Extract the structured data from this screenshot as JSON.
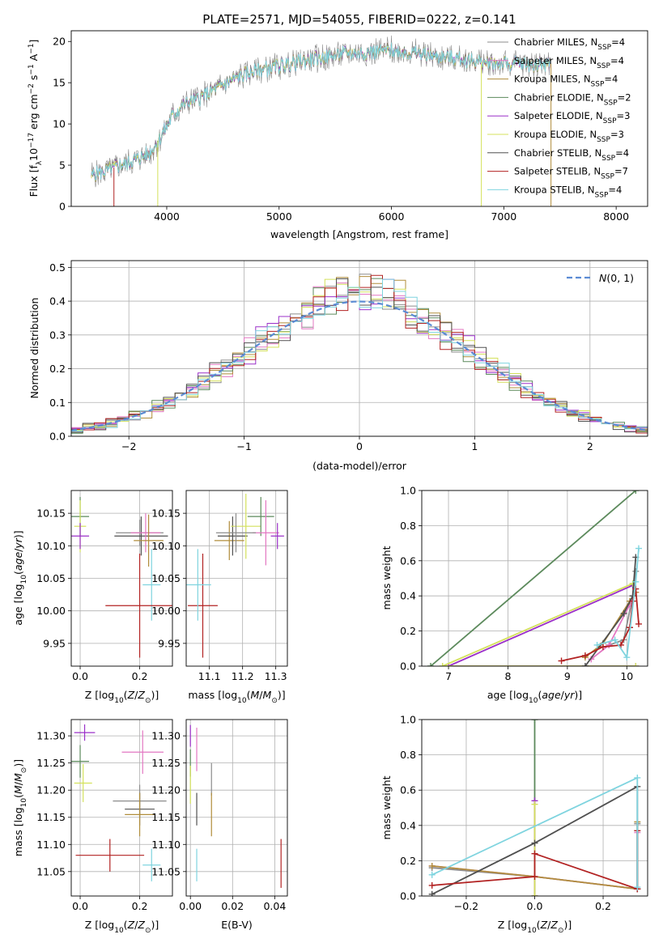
{
  "figure_title": "PLATE=2571, MJD=54055, FIBERID=0222, z=0.141",
  "models": [
    {
      "name": "Chabrier MILES",
      "nssp": "4",
      "color": "#8c8c8c"
    },
    {
      "name": "Salpeter MILES",
      "nssp": "4",
      "color": "#e377c2"
    },
    {
      "name": "Kroupa MILES",
      "nssp": "4",
      "color": "#b08d3b"
    },
    {
      "name": "Chabrier ELODIE",
      "nssp": "2",
      "color": "#5c8a5c"
    },
    {
      "name": "Salpeter ELODIE",
      "nssp": "3",
      "color": "#9b30c9"
    },
    {
      "name": "Kroupa ELODIE",
      "nssp": "3",
      "color": "#d4e15c"
    },
    {
      "name": "Chabrier STELIB",
      "nssp": "4",
      "color": "#505050"
    },
    {
      "name": "Salpeter STELIB",
      "nssp": "7",
      "color": "#b22222"
    },
    {
      "name": "Kroupa STELIB",
      "nssp": "4",
      "color": "#7fd4df"
    }
  ],
  "legend_suffix": {
    "prefix": ", N",
    "sub": "SSP",
    "eq": "="
  },
  "chart_data": [
    {
      "type": "line",
      "panel": "spectrum",
      "xlabel": "wavelength [Angstrom, rest frame]",
      "ylabel": "Flux [f",
      "xlim": [
        3150,
        8280
      ],
      "ylim": [
        0,
        21.3
      ],
      "xticks": [
        4000,
        5000,
        6000,
        7000,
        8000
      ],
      "yticks": [
        0,
        5,
        10,
        15,
        20
      ],
      "grid": false,
      "legend": "top-right",
      "continuum": {
        "x": [
          3330,
          3450,
          3550,
          3700,
          3850,
          3950,
          4050,
          4150,
          4300,
          4450,
          4600,
          4800,
          5000,
          5200,
          5400,
          5600,
          5800,
          6000,
          6200,
          6400,
          6600,
          6800,
          7000,
          7200,
          7400
        ],
        "y": [
          3.8,
          4.3,
          4.8,
          5.5,
          6.5,
          8.5,
          11.0,
          12.3,
          13.2,
          14.3,
          15.5,
          16.5,
          17.0,
          17.6,
          18.1,
          18.5,
          18.7,
          18.9,
          18.6,
          18.2,
          17.9,
          17.5,
          17.3,
          17.2,
          17.3
        ]
      },
      "dropouts": [
        {
          "x": 3530,
          "series": 7,
          "to": 0
        },
        {
          "x": 3920,
          "series": 5,
          "to": 0
        },
        {
          "x": 6800,
          "series": 5,
          "to": 0
        },
        {
          "x": 7420,
          "series": 2,
          "to": 0
        }
      ]
    },
    {
      "type": "line",
      "panel": "residual_histogram",
      "xlabel": "(data-model)/error",
      "ylabel": "Normed distribution",
      "xlim": [
        -2.5,
        2.5
      ],
      "ylim": [
        0,
        0.52
      ],
      "xticks": [
        -2,
        -1,
        0,
        1,
        2
      ],
      "yticks": [
        0,
        0.1,
        0.2,
        0.3,
        0.4,
        0.5
      ],
      "grid": true,
      "legend": "top-right",
      "reference_curve": "N(0,1)",
      "bin_width": 0.1
    },
    {
      "type": "scatter",
      "panel": "age_vs_Z",
      "xlabel": "Z [log10(Z/Zsun)]",
      "ylabel": "age [log10(age/yr)]",
      "xlim": [
        -0.03,
        0.31
      ],
      "ylim": [
        9.915,
        10.185
      ],
      "xticks": [
        0.0,
        0.2
      ],
      "yticks": [
        9.95,
        10.0,
        10.05,
        10.1,
        10.15
      ],
      "grid": true,
      "points": [
        {
          "x": 0.0,
          "y": 10.145,
          "xerr": 0.03,
          "yerr": 0.03,
          "series": 3
        },
        {
          "x": 0.0,
          "y": 10.13,
          "xerr": 0.02,
          "yerr": 0.04,
          "series": 5
        },
        {
          "x": 0.0,
          "y": 10.115,
          "xerr": 0.03,
          "yerr": 0.02,
          "series": 4
        },
        {
          "x": 0.2,
          "y": 10.12,
          "xerr": 0.08,
          "yerr": 0.02,
          "series": 0
        },
        {
          "x": 0.205,
          "y": 10.115,
          "xerr": 0.09,
          "yerr": 0.03,
          "series": 6
        },
        {
          "x": 0.22,
          "y": 10.12,
          "xerr": 0.05,
          "yerr": 0.03,
          "series": 1
        },
        {
          "x": 0.23,
          "y": 10.108,
          "xerr": 0.05,
          "yerr": 0.04,
          "series": 2
        },
        {
          "x": 0.24,
          "y": 10.04,
          "xerr": 0.03,
          "yerr": 0.055,
          "series": 8
        },
        {
          "x": 0.2,
          "y": 10.008,
          "xerr": 0.115,
          "yerr": 0.08,
          "series": 7
        }
      ]
    },
    {
      "type": "scatter",
      "panel": "age_vs_mass",
      "xlabel": "mass [log10(M/Msun)]",
      "ylabel": "",
      "xlim": [
        11.03,
        11.335
      ],
      "ylim": [
        9.915,
        10.185
      ],
      "xticks": [
        11.1,
        11.2,
        11.3
      ],
      "yticks": [
        9.95,
        10.0,
        10.05,
        10.1,
        10.15
      ],
      "grid": true,
      "points": [
        {
          "x": 11.08,
          "y": 10.008,
          "xerr": 0.045,
          "yerr": 0.08,
          "series": 7
        },
        {
          "x": 11.065,
          "y": 10.04,
          "xerr": 0.04,
          "yerr": 0.055,
          "series": 8
        },
        {
          "x": 11.16,
          "y": 10.108,
          "xerr": 0.045,
          "yerr": 0.03,
          "series": 2
        },
        {
          "x": 11.17,
          "y": 10.115,
          "xerr": 0.045,
          "yerr": 0.03,
          "series": 6
        },
        {
          "x": 11.21,
          "y": 10.13,
          "xerr": 0.045,
          "yerr": 0.05,
          "series": 5
        },
        {
          "x": 11.255,
          "y": 10.145,
          "xerr": 0.04,
          "yerr": 0.03,
          "series": 3
        },
        {
          "x": 11.27,
          "y": 10.12,
          "xerr": 0.04,
          "yerr": 0.05,
          "series": 1
        },
        {
          "x": 11.305,
          "y": 10.115,
          "xerr": 0.02,
          "yerr": 0.02,
          "series": 4
        },
        {
          "x": 11.18,
          "y": 10.12,
          "xerr": 0.06,
          "yerr": 0.03,
          "series": 0
        }
      ]
    },
    {
      "type": "line",
      "panel": "mass_weight_vs_age",
      "xlabel": "age [log10(age/yr)]",
      "ylabel": "mass weight",
      "xlim": [
        6.55,
        10.35
      ],
      "ylim": [
        0,
        1.0
      ],
      "xticks": [
        7,
        8,
        9,
        10
      ],
      "yticks": [
        0.0,
        0.2,
        0.4,
        0.6,
        0.8,
        1.0
      ],
      "grid": true,
      "series_points": [
        {
          "series": 0,
          "x": [
            9.7,
            9.95,
            10.1,
            10.15
          ],
          "y": [
            0.12,
            0.15,
            0.4,
            0.54
          ]
        },
        {
          "series": 1,
          "x": [
            9.4,
            9.7,
            10.05,
            10.15
          ],
          "y": [
            0.04,
            0.12,
            0.35,
            0.42
          ]
        },
        {
          "series": 2,
          "x": [
            9.3,
            9.6,
            10.05,
            10.15
          ],
          "y": [
            0.05,
            0.13,
            0.37,
            0.42
          ]
        },
        {
          "series": 3,
          "x": [
            6.7,
            10.15
          ],
          "y": [
            0.0,
            1.0
          ]
        },
        {
          "series": 4,
          "x": [
            10.15,
            7.0,
            10.1
          ],
          "y": [
            0.0,
            0.0,
            0.46
          ]
        },
        {
          "series": 5,
          "x": [
            10.15,
            6.9,
            10.1
          ],
          "y": [
            0.0,
            0.0,
            0.47
          ]
        },
        {
          "series": 6,
          "x": [
            9.3,
            9.95,
            10.1,
            10.15
          ],
          "y": [
            0.0,
            0.3,
            0.4,
            0.62
          ]
        },
        {
          "series": 7,
          "x": [
            8.9,
            9.3,
            9.6,
            9.9,
            10.05,
            10.1,
            10.15,
            10.2
          ],
          "y": [
            0.03,
            0.06,
            0.11,
            0.12,
            0.22,
            0.37,
            0.44,
            0.24
          ]
        },
        {
          "series": 8,
          "x": [
            9.5,
            9.8,
            10.0,
            10.15,
            10.2
          ],
          "y": [
            0.12,
            0.15,
            0.05,
            0.48,
            0.67
          ]
        }
      ]
    },
    {
      "type": "scatter",
      "panel": "mass_vs_Z",
      "xlabel": "Z [log10(Z/Zsun)]",
      "ylabel": "mass [log10(M/Msun)]",
      "xlim": [
        -0.03,
        0.31
      ],
      "ylim": [
        11.005,
        11.33
      ],
      "xticks": [
        0.0,
        0.2
      ],
      "yticks": [
        11.05,
        11.1,
        11.15,
        11.2,
        11.25,
        11.3
      ],
      "grid": true,
      "points": [
        {
          "x": 0.015,
          "y": 11.306,
          "xerr": 0.035,
          "yerr": 0.015,
          "series": 4
        },
        {
          "x": 0.0,
          "y": 11.253,
          "xerr": 0.03,
          "yerr": 0.03,
          "series": 3
        },
        {
          "x": 0.01,
          "y": 11.213,
          "xerr": 0.03,
          "yerr": 0.035,
          "series": 5
        },
        {
          "x": 0.2,
          "y": 11.18,
          "xerr": 0.09,
          "yerr": 0.03,
          "series": 0
        },
        {
          "x": 0.2,
          "y": 11.165,
          "xerr": 0.05,
          "yerr": 0.03,
          "series": 6
        },
        {
          "x": 0.21,
          "y": 11.27,
          "xerr": 0.07,
          "yerr": 0.04,
          "series": 1
        },
        {
          "x": 0.2,
          "y": 11.155,
          "xerr": 0.05,
          "yerr": 0.04,
          "series": 2
        },
        {
          "x": 0.24,
          "y": 11.062,
          "xerr": 0.03,
          "yerr": 0.03,
          "series": 8
        },
        {
          "x": 0.1,
          "y": 11.08,
          "xerr": 0.115,
          "yerr": 0.03,
          "series": 7
        }
      ]
    },
    {
      "type": "scatter",
      "panel": "mass_vs_ebv",
      "xlabel": "E(B-V)",
      "ylabel": "",
      "xlim": [
        -0.002,
        0.046
      ],
      "ylim": [
        11.005,
        11.33
      ],
      "xticks": [
        0.0,
        0.02,
        0.04
      ],
      "yticks": [
        11.05,
        11.1,
        11.15,
        11.2,
        11.25,
        11.3
      ],
      "grid": true,
      "points": [
        {
          "x": 0.0,
          "y": 11.3,
          "xerr": 0,
          "yerr": 0.02,
          "series": 4
        },
        {
          "x": 0.0,
          "y": 11.25,
          "xerr": 0,
          "yerr": 0.025,
          "series": 3
        },
        {
          "x": 0.0,
          "y": 11.21,
          "xerr": 0,
          "yerr": 0.035,
          "series": 5
        },
        {
          "x": 0.003,
          "y": 11.275,
          "xerr": 0,
          "yerr": 0.04,
          "series": 1
        },
        {
          "x": 0.003,
          "y": 11.165,
          "xerr": 0,
          "yerr": 0.03,
          "series": 6
        },
        {
          "x": 0.003,
          "y": 11.062,
          "xerr": 0,
          "yerr": 0.03,
          "series": 8
        },
        {
          "x": 0.01,
          "y": 11.22,
          "xerr": 0,
          "yerr": 0.03,
          "series": 0
        },
        {
          "x": 0.01,
          "y": 11.155,
          "xerr": 0,
          "yerr": 0.04,
          "series": 2
        },
        {
          "x": 0.043,
          "y": 11.065,
          "xerr": 0,
          "yerr": 0.045,
          "series": 7
        }
      ]
    },
    {
      "type": "line",
      "panel": "mass_weight_vs_Z",
      "xlabel": "Z [log10(Z/Zsun)]",
      "ylabel": "mass weight",
      "xlim": [
        -0.33,
        0.33
      ],
      "ylim": [
        0,
        1.0
      ],
      "xticks": [
        -0.2,
        0.0,
        0.2
      ],
      "yticks": [
        0.0,
        0.2,
        0.4,
        0.6,
        0.8,
        1.0
      ],
      "grid": true,
      "series_points": [
        {
          "series": 0,
          "x": [
            -0.3,
            0.0,
            0.3,
            0.3
          ],
          "y": [
            0.16,
            0.11,
            0.04,
            0.41
          ]
        },
        {
          "series": 1,
          "x": [
            -0.3,
            0.0,
            0.3,
            0.3
          ],
          "y": [
            0.17,
            0.11,
            0.04,
            0.36
          ]
        },
        {
          "series": 2,
          "x": [
            -0.3,
            0.0,
            0.3,
            0.3
          ],
          "y": [
            0.17,
            0.11,
            0.04,
            0.42
          ]
        },
        {
          "series": 3,
          "x": [
            0.0,
            0.0
          ],
          "y": [
            0.0,
            1.0
          ]
        },
        {
          "series": 4,
          "x": [
            0.0,
            0.0
          ],
          "y": [
            0.0,
            0.54
          ]
        },
        {
          "series": 5,
          "x": [
            0.0,
            0.0
          ],
          "y": [
            0.0,
            0.52
          ]
        },
        {
          "series": 6,
          "x": [
            -0.3,
            0.0,
            0.3,
            0.3
          ],
          "y": [
            0.01,
            0.3,
            0.62,
            0.04
          ]
        },
        {
          "series": 7,
          "x": [
            -0.3,
            0.0,
            0.0,
            0.3,
            0.3
          ],
          "y": [
            0.06,
            0.11,
            0.24,
            0.04,
            0.37
          ]
        },
        {
          "series": 8,
          "x": [
            -0.3,
            0.3,
            0.3
          ],
          "y": [
            0.12,
            0.67,
            0.05
          ]
        }
      ]
    }
  ]
}
